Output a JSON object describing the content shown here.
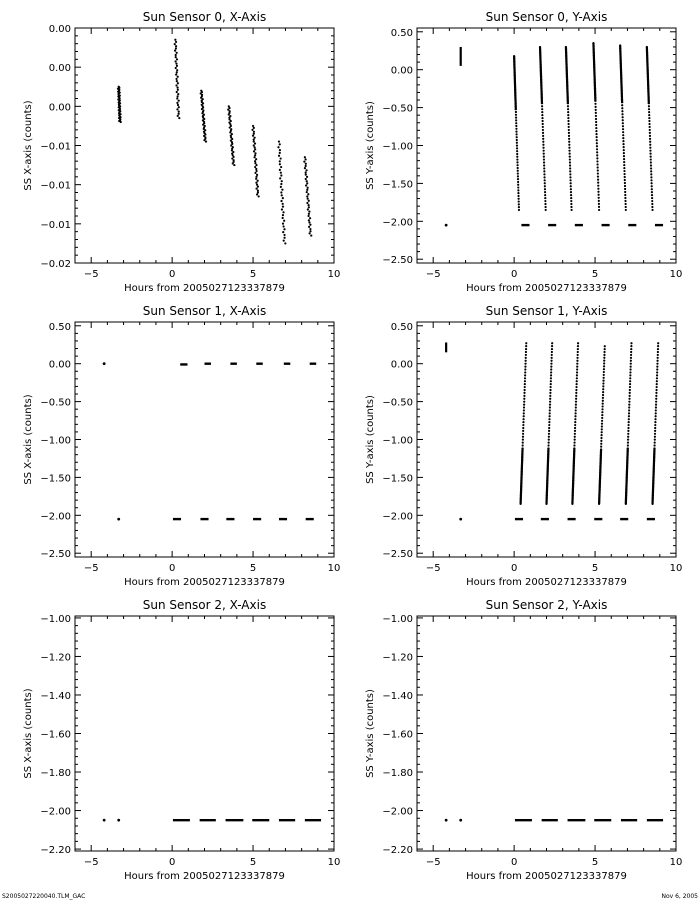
{
  "footer": {
    "left": "S2005027220040.TLM_GAC",
    "right": "Nov  6, 2005"
  },
  "chart_data": [
    {
      "type": "scatter",
      "title": "Sun Sensor 0, X-Axis",
      "xlabel": "Hours from 2005027123337879",
      "ylabel": "SS X-axis (counts)",
      "xlim": [
        -6,
        10
      ],
      "ylim": [
        -0.02,
        0.01
      ],
      "xticks": [
        -5,
        0,
        5,
        10
      ],
      "xtick_labels": [
        "−5",
        "0",
        "5",
        "10"
      ],
      "yticks": [
        0.01,
        0.005,
        0.0,
        -0.005,
        -0.01,
        -0.015,
        -0.02
      ],
      "ytick_labels": [
        "0.00",
        "0.00",
        "0.00",
        "−0.01",
        "−0.01",
        "−0.01",
        "−0.02"
      ],
      "clusters": [
        {
          "x": -3.3,
          "y1": 0.0025,
          "y2": -0.002,
          "w": 0.08
        },
        {
          "x": 0.2,
          "y1": 0.0085,
          "y2": -0.0015,
          "w": 0.2
        },
        {
          "x": 1.8,
          "y1": 0.002,
          "y2": -0.0045,
          "w": 0.25
        },
        {
          "x": 3.5,
          "y1": 0.0,
          "y2": -0.0075,
          "w": 0.3
        },
        {
          "x": 5.0,
          "y1": -0.0025,
          "y2": -0.0115,
          "w": 0.3
        },
        {
          "x": 6.6,
          "y1": -0.0045,
          "y2": -0.0175,
          "w": 0.35
        },
        {
          "x": 8.2,
          "y1": -0.0065,
          "y2": -0.0165,
          "w": 0.35
        }
      ]
    },
    {
      "type": "scatter",
      "title": "Sun Sensor 0, Y-Axis",
      "xlabel": "Hours from 2005027123337879",
      "ylabel": "SS Y-axis (counts)",
      "xlim": [
        -6,
        10
      ],
      "ylim": [
        -2.55,
        0.55
      ],
      "xticks": [
        -5,
        0,
        5,
        10
      ],
      "xtick_labels": [
        "−5",
        "0",
        "5",
        "10"
      ],
      "yticks": [
        0.5,
        0.0,
        -0.5,
        -1.0,
        -1.5,
        -2.0,
        -2.5
      ],
      "ytick_labels": [
        "0.50",
        "0.00",
        "−0.50",
        "−1.00",
        "−1.50",
        "−2.00",
        "−2.50"
      ],
      "ramps": [
        {
          "x0": 0.0,
          "y0": 0.18,
          "x1": 0.3,
          "y1": -1.85
        },
        {
          "x0": 1.6,
          "y0": 0.3,
          "x1": 1.95,
          "y1": -1.85
        },
        {
          "x0": 3.2,
          "y0": 0.3,
          "x1": 3.55,
          "y1": -1.85
        },
        {
          "x0": 4.9,
          "y0": 0.35,
          "x1": 5.25,
          "y1": -1.85
        },
        {
          "x0": 6.55,
          "y0": 0.32,
          "x1": 6.9,
          "y1": -1.85
        },
        {
          "x0": 8.2,
          "y0": 0.3,
          "x1": 8.55,
          "y1": -1.85
        }
      ],
      "short_segments": [
        {
          "x": -3.3,
          "y1": 0.3,
          "y2": 0.05
        }
      ],
      "flat_segments": [
        {
          "x1": 0.45,
          "x2": 0.95,
          "y": -2.05
        },
        {
          "x1": 2.1,
          "x2": 2.6,
          "y": -2.05
        },
        {
          "x1": 3.75,
          "x2": 4.25,
          "y": -2.05
        },
        {
          "x1": 5.4,
          "x2": 5.9,
          "y": -2.05
        },
        {
          "x1": 7.05,
          "x2": 7.55,
          "y": -2.05
        },
        {
          "x1": 8.7,
          "x2": 9.2,
          "y": -2.05
        }
      ],
      "dots": [
        {
          "x": -4.2,
          "y": -2.05
        }
      ]
    },
    {
      "type": "scatter",
      "title": "Sun Sensor 1, X-Axis",
      "xlabel": "Hours from 2005027123337879",
      "ylabel": "SS X-axis (counts)",
      "xlim": [
        -6,
        10
      ],
      "ylim": [
        -2.55,
        0.55
      ],
      "xticks": [
        -5,
        0,
        5,
        10
      ],
      "xtick_labels": [
        "−5",
        "0",
        "5",
        "10"
      ],
      "yticks": [
        0.5,
        0.0,
        -0.5,
        -1.0,
        -1.5,
        -2.0,
        -2.5
      ],
      "ytick_labels": [
        "0.50",
        "0.00",
        "−0.50",
        "−1.00",
        "−1.50",
        "−2.00",
        "−2.50"
      ],
      "flat_segments": [
        {
          "x1": 0.5,
          "x2": 0.95,
          "y": -0.01
        },
        {
          "x1": 2.0,
          "x2": 2.4,
          "y": 0.0
        },
        {
          "x1": 3.6,
          "x2": 4.0,
          "y": 0.0
        },
        {
          "x1": 5.2,
          "x2": 5.6,
          "y": 0.0
        },
        {
          "x1": 6.9,
          "x2": 7.3,
          "y": 0.0
        },
        {
          "x1": 8.5,
          "x2": 8.9,
          "y": 0.0
        },
        {
          "x1": 0.05,
          "x2": 0.55,
          "y": -2.05
        },
        {
          "x1": 1.75,
          "x2": 2.25,
          "y": -2.05
        },
        {
          "x1": 3.35,
          "x2": 3.85,
          "y": -2.05
        },
        {
          "x1": 5.0,
          "x2": 5.5,
          "y": -2.05
        },
        {
          "x1": 6.6,
          "x2": 7.1,
          "y": -2.05
        },
        {
          "x1": 8.25,
          "x2": 8.75,
          "y": -2.05
        }
      ],
      "dots": [
        {
          "x": -4.2,
          "y": 0.0
        },
        {
          "x": -3.3,
          "y": -2.05
        }
      ]
    },
    {
      "type": "scatter",
      "title": "Sun Sensor 1, Y-Axis",
      "xlabel": "Hours from 2005027123337879",
      "ylabel": "SS Y-axis (counts)",
      "xlim": [
        -6,
        10
      ],
      "ylim": [
        -2.55,
        0.55
      ],
      "xticks": [
        -5,
        0,
        5,
        10
      ],
      "xtick_labels": [
        "−5",
        "0",
        "5",
        "10"
      ],
      "yticks": [
        0.5,
        0.0,
        -0.5,
        -1.0,
        -1.5,
        -2.0,
        -2.5
      ],
      "ytick_labels": [
        "0.50",
        "0.00",
        "−0.50",
        "−1.00",
        "−1.50",
        "−2.00",
        "−2.50"
      ],
      "ramps": [
        {
          "x0": 0.4,
          "y0": -1.85,
          "x1": 0.75,
          "y1": 0.27
        },
        {
          "x0": 2.0,
          "y0": -1.85,
          "x1": 2.35,
          "y1": 0.27
        },
        {
          "x0": 3.6,
          "y0": -1.85,
          "x1": 3.95,
          "y1": 0.27
        },
        {
          "x0": 5.25,
          "y0": -1.85,
          "x1": 5.6,
          "y1": 0.23
        },
        {
          "x0": 6.9,
          "y0": -1.85,
          "x1": 7.25,
          "y1": 0.27
        },
        {
          "x0": 8.55,
          "y0": -1.85,
          "x1": 8.9,
          "y1": 0.27
        }
      ],
      "short_segments": [
        {
          "x": -4.2,
          "y1": 0.28,
          "y2": 0.15
        }
      ],
      "flat_segments": [
        {
          "x1": 0.05,
          "x2": 0.55,
          "y": -2.05
        },
        {
          "x1": 1.65,
          "x2": 2.15,
          "y": -2.05
        },
        {
          "x1": 3.3,
          "x2": 3.8,
          "y": -2.05
        },
        {
          "x1": 4.95,
          "x2": 5.45,
          "y": -2.05
        },
        {
          "x1": 6.55,
          "x2": 7.05,
          "y": -2.05
        },
        {
          "x1": 8.2,
          "x2": 8.7,
          "y": -2.05
        }
      ],
      "dots": [
        {
          "x": -3.3,
          "y": -2.05
        }
      ]
    },
    {
      "type": "scatter",
      "title": "Sun Sensor 2, X-Axis",
      "xlabel": "Hours from 2005027123337879",
      "ylabel": "SS X-axis (counts)",
      "xlim": [
        -6,
        10
      ],
      "ylim": [
        -2.21,
        -0.99
      ],
      "xticks": [
        -5,
        0,
        5,
        10
      ],
      "xtick_labels": [
        "−5",
        "0",
        "5",
        "10"
      ],
      "yticks": [
        -1.0,
        -1.2,
        -1.4,
        -1.6,
        -1.8,
        -2.0,
        -2.2
      ],
      "ytick_labels": [
        "−1.00",
        "−1.20",
        "−1.40",
        "−1.60",
        "−1.80",
        "−2.00",
        "−2.20"
      ],
      "flat_segments": [
        {
          "x1": 0.05,
          "x2": 1.1,
          "y": -2.05
        },
        {
          "x1": 1.7,
          "x2": 2.7,
          "y": -2.05
        },
        {
          "x1": 3.3,
          "x2": 4.4,
          "y": -2.05
        },
        {
          "x1": 4.95,
          "x2": 6.0,
          "y": -2.05
        },
        {
          "x1": 6.6,
          "x2": 7.6,
          "y": -2.05
        },
        {
          "x1": 8.2,
          "x2": 9.2,
          "y": -2.05
        }
      ],
      "dots": [
        {
          "x": -4.2,
          "y": -2.05
        },
        {
          "x": -3.3,
          "y": -2.05
        }
      ]
    },
    {
      "type": "scatter",
      "title": "Sun Sensor 2, Y-Axis",
      "xlabel": "Hours from 2005027123337879",
      "ylabel": "SS Y-axis (counts)",
      "xlim": [
        -6,
        10
      ],
      "ylim": [
        -2.21,
        -0.99
      ],
      "xticks": [
        -5,
        0,
        5,
        10
      ],
      "xtick_labels": [
        "−5",
        "0",
        "5",
        "10"
      ],
      "yticks": [
        -1.0,
        -1.2,
        -1.4,
        -1.6,
        -1.8,
        -2.0,
        -2.2
      ],
      "ytick_labels": [
        "−1.00",
        "−1.20",
        "−1.40",
        "−1.60",
        "−1.80",
        "−2.00",
        "−2.20"
      ],
      "flat_segments": [
        {
          "x1": 0.05,
          "x2": 1.1,
          "y": -2.05
        },
        {
          "x1": 1.7,
          "x2": 2.7,
          "y": -2.05
        },
        {
          "x1": 3.3,
          "x2": 4.4,
          "y": -2.05
        },
        {
          "x1": 4.95,
          "x2": 6.0,
          "y": -2.05
        },
        {
          "x1": 6.6,
          "x2": 7.6,
          "y": -2.05
        },
        {
          "x1": 8.2,
          "x2": 9.2,
          "y": -2.05
        }
      ],
      "dots": [
        {
          "x": -4.2,
          "y": -2.05
        },
        {
          "x": -3.3,
          "y": -2.05
        }
      ]
    }
  ]
}
